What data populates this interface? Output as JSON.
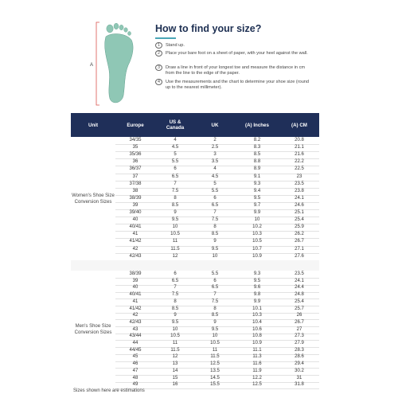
{
  "howto": {
    "title": "How to find your size?",
    "measure_label": "A",
    "steps": [
      {
        "num": "1",
        "text": "Stand up."
      },
      {
        "num": "2",
        "text": "Place your bare foot on a sheet of paper, with your heel against the wall."
      },
      {
        "num": "3",
        "text": "Draw a line in front of your longest toe and measure the distance in cm from the line to the edge of the paper."
      },
      {
        "num": "4",
        "text": "Use the measurements and the chart to determine your shoe size (round up to the nearest millimeter)."
      }
    ]
  },
  "table": {
    "headers": [
      "Unit",
      "Europe",
      "US & Canada",
      "UK",
      "(A) Inches",
      "(A) CM"
    ],
    "women": {
      "label": "Women's Shoe Size Conversion Sizes",
      "rows": [
        [
          "34/35",
          "4",
          "2",
          "8.2",
          "20.8"
        ],
        [
          "35",
          "4.5",
          "2.5",
          "8.3",
          "21.1"
        ],
        [
          "35/36",
          "5",
          "3",
          "8.5",
          "21.6"
        ],
        [
          "36",
          "5.5",
          "3.5",
          "8.8",
          "22.2"
        ],
        [
          "36/37",
          "6",
          "4",
          "8.9",
          "22.5"
        ],
        [
          "37",
          "6.5",
          "4.5",
          "9.1",
          "23"
        ],
        [
          "37/38",
          "7",
          "5",
          "9.3",
          "23.5"
        ],
        [
          "38",
          "7.5",
          "5.5",
          "9.4",
          "23.8"
        ],
        [
          "38/39",
          "8",
          "6",
          "9.5",
          "24.1"
        ],
        [
          "39",
          "8.5",
          "6.5",
          "9.7",
          "24.6"
        ],
        [
          "39/40",
          "9",
          "7",
          "9.9",
          "25.1"
        ],
        [
          "40",
          "9.5",
          "7.5",
          "10",
          "25.4"
        ],
        [
          "40/41",
          "10",
          "8",
          "10.2",
          "25.9"
        ],
        [
          "41",
          "10.5",
          "8.5",
          "10.3",
          "26.2"
        ],
        [
          "41/42",
          "11",
          "9",
          "10.5",
          "26.7"
        ],
        [
          "42",
          "11.5",
          "9.5",
          "10.7",
          "27.1"
        ],
        [
          "42/43",
          "12",
          "10",
          "10.9",
          "27.6"
        ]
      ]
    },
    "men": {
      "label": "Men's Shoe Size Conversion Sizes",
      "rows": [
        [
          "38/39",
          "6",
          "5.5",
          "9.3",
          "23.5"
        ],
        [
          "39",
          "6.5",
          "6",
          "9.5",
          "24.1"
        ],
        [
          "40",
          "7",
          "6.5",
          "9.6",
          "24.4"
        ],
        [
          "40/41",
          "7.5",
          "7",
          "9.8",
          "24.8"
        ],
        [
          "41",
          "8",
          "7.5",
          "9.9",
          "25.4"
        ],
        [
          "41/42",
          "8.5",
          "8",
          "10.1",
          "25.7"
        ],
        [
          "42",
          "9",
          "8.5",
          "10.3",
          "26"
        ],
        [
          "42/43",
          "9.5",
          "9",
          "10.4",
          "26.7"
        ],
        [
          "43",
          "10",
          "9.5",
          "10.6",
          "27"
        ],
        [
          "43/44",
          "10.5",
          "10",
          "10.8",
          "27.3"
        ],
        [
          "44",
          "11",
          "10.5",
          "10.9",
          "27.9"
        ],
        [
          "44/45",
          "11.5",
          "11",
          "11.1",
          "28.3"
        ],
        [
          "45",
          "12",
          "11.5",
          "11.3",
          "28.6"
        ],
        [
          "46",
          "13",
          "12.5",
          "11.6",
          "29.4"
        ],
        [
          "47",
          "14",
          "13.5",
          "11.9",
          "30.2"
        ],
        [
          "48",
          "15",
          "14.5",
          "12.2",
          "31"
        ],
        [
          "49",
          "16",
          "15.5",
          "12.5",
          "31.8"
        ]
      ]
    }
  },
  "footnote": "Sizes shown here are estimations",
  "colors": {
    "header_bg": "#1f2f59",
    "accent": "#4aa6b6",
    "foot_fill": "#8fc7b5",
    "measure_line": "#d9534f"
  }
}
